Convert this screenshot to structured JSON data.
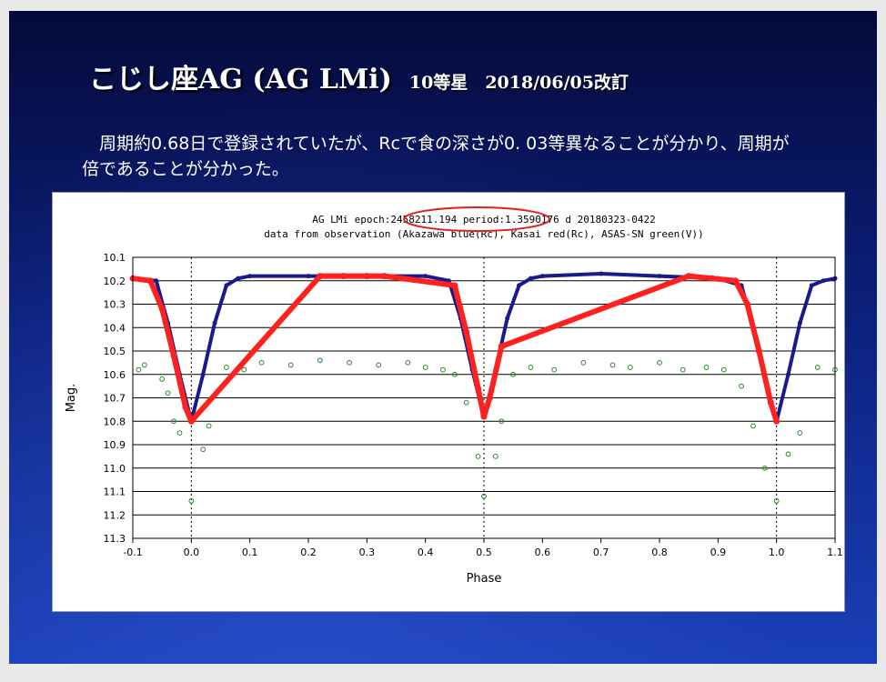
{
  "slide": {
    "title_main": "こじし座AG (AG LMi)",
    "title_sub": "10等星　2018/06/05改訂",
    "body": "周期約0.68日で登録されていたが、Rcで食の深さが0. 03等異なることが分かり、周期が倍であることが分かった。"
  },
  "chart_data": {
    "type": "scatter",
    "title_line1": "AG LMi  epoch:2458211.194  period:1.3590176 d  20180323-0422",
    "title_line2": "data from observation (Akazawa blue(Rc), Kasai red(Rc), ASAS-SN green(V))",
    "xlabel": "Phase",
    "ylabel": "Mag.",
    "xlim": [
      -0.1,
      1.1
    ],
    "ylim": [
      10.1,
      11.3
    ],
    "y_inverted": true,
    "xticks": [
      "-0.1",
      "0.0",
      "0.1",
      "0.2",
      "0.3",
      "0.4",
      "0.5",
      "0.6",
      "0.7",
      "0.8",
      "0.9",
      "1.0",
      "1.1"
    ],
    "yticks": [
      "10.1",
      "10.2",
      "10.3",
      "10.4",
      "10.5",
      "10.6",
      "10.7",
      "10.8",
      "10.9",
      "11.0",
      "11.1",
      "11.2",
      "11.3"
    ],
    "grid": "horizontal",
    "dotted_vlines": [
      0.0,
      0.5,
      1.0
    ],
    "highlight": "period:1.3590176 d",
    "series": [
      {
        "name": "Akazawa blue(Rc)",
        "color": "#1a1a8c",
        "x": [
          -0.1,
          -0.06,
          -0.04,
          -0.02,
          0.0,
          0.02,
          0.04,
          0.06,
          0.08,
          0.1,
          0.2,
          0.3,
          0.4,
          0.44,
          0.46,
          0.48,
          0.5,
          0.52,
          0.54,
          0.56,
          0.58,
          0.6,
          0.7,
          0.8,
          0.9,
          0.94,
          0.96,
          0.98,
          1.0,
          1.02,
          1.04,
          1.06,
          1.08,
          1.1
        ],
        "y": [
          10.19,
          10.2,
          10.38,
          10.6,
          10.8,
          10.6,
          10.38,
          10.22,
          10.19,
          10.18,
          10.18,
          10.18,
          10.18,
          10.2,
          10.36,
          10.58,
          10.78,
          10.58,
          10.36,
          10.22,
          10.19,
          10.18,
          10.17,
          10.18,
          10.19,
          10.22,
          10.4,
          10.62,
          10.8,
          10.6,
          10.38,
          10.22,
          10.2,
          10.19
        ]
      },
      {
        "name": "Kasai red(Rc)",
        "color": "#ff2020",
        "x": [
          -0.1,
          -0.07,
          -0.05,
          -0.03,
          -0.01,
          0.0,
          0.22,
          0.26,
          0.3,
          0.33,
          0.45,
          0.47,
          0.49,
          0.5,
          0.51,
          0.53,
          0.85,
          0.89,
          0.93,
          0.95,
          0.97,
          0.99,
          1.0
        ],
        "y": [
          10.19,
          10.2,
          10.32,
          10.52,
          10.74,
          10.8,
          10.18,
          10.18,
          10.18,
          10.18,
          10.22,
          10.42,
          10.66,
          10.78,
          10.7,
          10.48,
          10.18,
          10.19,
          10.2,
          10.3,
          10.5,
          10.72,
          10.8
        ]
      },
      {
        "name": "ASAS-SN green(V)",
        "color": "#228b22",
        "x": [
          -0.09,
          -0.08,
          -0.05,
          -0.04,
          -0.03,
          -0.02,
          0.0,
          0.02,
          0.03,
          0.06,
          0.09,
          0.12,
          0.17,
          0.22,
          0.27,
          0.32,
          0.37,
          0.4,
          0.43,
          0.45,
          0.47,
          0.49,
          0.5,
          0.52,
          0.53,
          0.55,
          0.58,
          0.62,
          0.67,
          0.72,
          0.75,
          0.8,
          0.84,
          0.88,
          0.91,
          0.94,
          0.96,
          0.98,
          1.0,
          1.02,
          1.04,
          1.07,
          1.1
        ],
        "y": [
          10.58,
          10.56,
          10.62,
          10.68,
          10.8,
          10.85,
          11.14,
          10.92,
          10.82,
          10.57,
          10.58,
          10.55,
          10.56,
          10.54,
          10.55,
          10.56,
          10.55,
          10.57,
          10.58,
          10.6,
          10.72,
          10.95,
          11.12,
          10.95,
          10.8,
          10.6,
          10.57,
          10.58,
          10.55,
          10.56,
          10.57,
          10.55,
          10.58,
          10.57,
          10.58,
          10.65,
          10.82,
          11.0,
          11.14,
          10.94,
          10.85,
          10.57,
          10.58
        ]
      }
    ]
  }
}
